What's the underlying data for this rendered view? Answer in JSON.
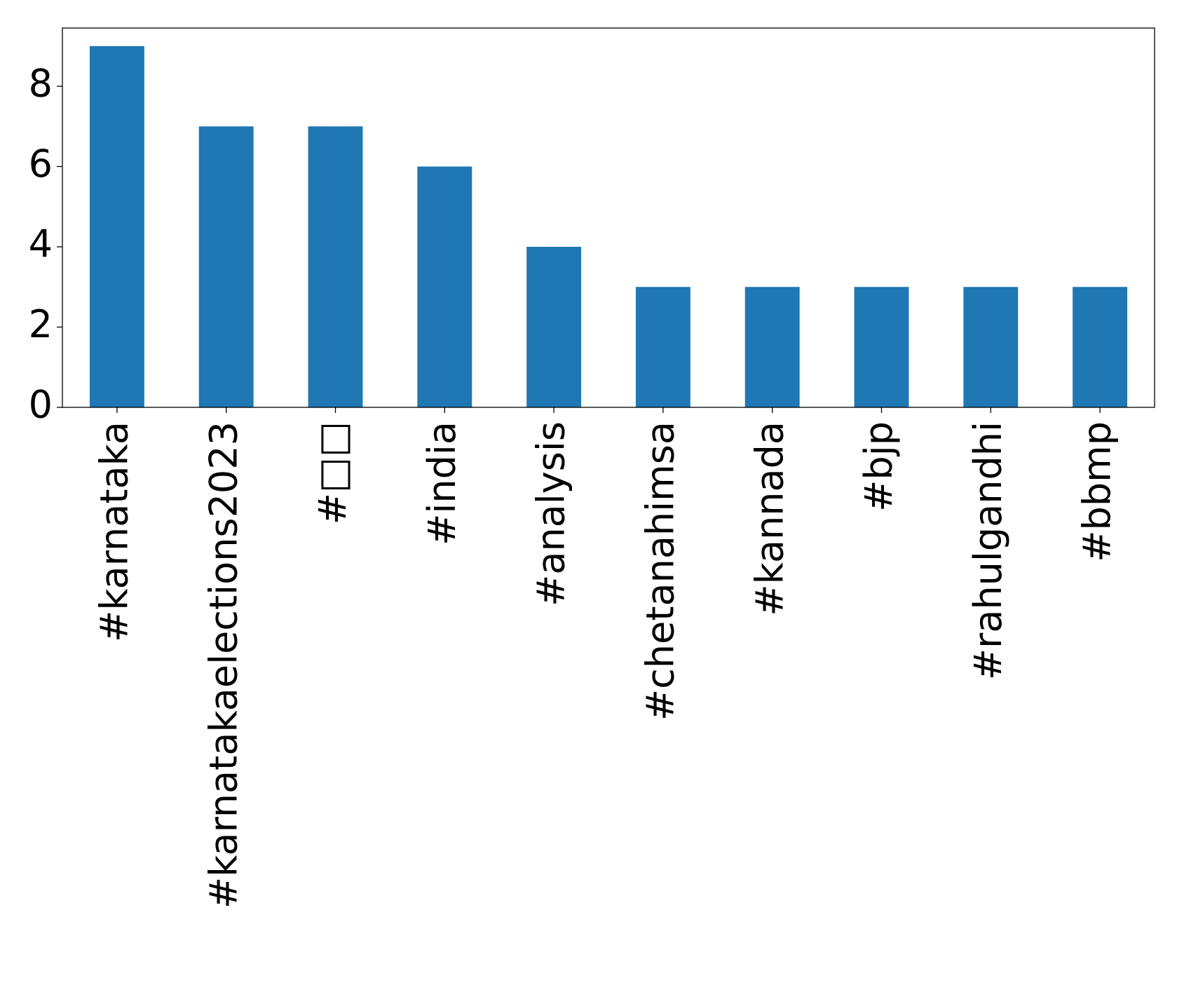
{
  "chart_data": {
    "type": "bar",
    "categories": [
      "#karnataka",
      "#karnatakaelections2023",
      "#□□",
      "#india",
      "#analysis",
      "#chetanahimsa",
      "#kannada",
      "#bjp",
      "#rahulgandhi",
      "#bbmp"
    ],
    "values": [
      9,
      7,
      7,
      6,
      4,
      3,
      3,
      3,
      3,
      3
    ],
    "color": "#1f77b4",
    "ylim": [
      0,
      9.45
    ],
    "yticks": [
      0,
      2,
      4,
      6,
      8
    ],
    "grid": false
  }
}
